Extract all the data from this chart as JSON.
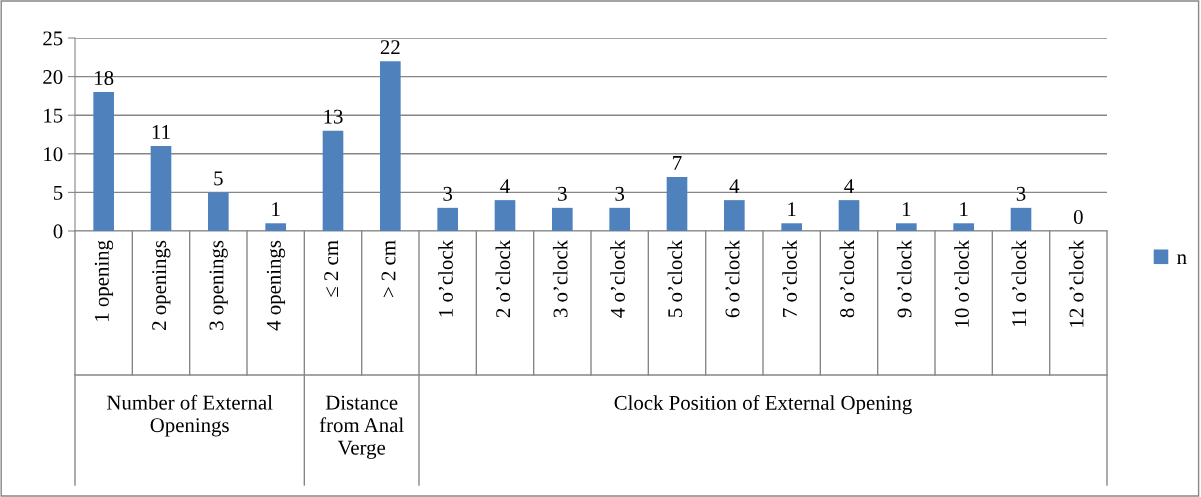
{
  "chart_data": {
    "type": "bar",
    "categories": [
      "1 opening",
      "2 openings",
      "3 openings",
      "4 openings",
      "≤ 2 cm",
      "> 2 cm",
      "1 o’clock",
      "2 o’clock",
      "3 o’clock",
      "4 o’clock",
      "5 o’clock",
      "6 o’clock",
      "7 o’clock",
      "8 o’clock",
      "9 o’clock",
      "10 o’clock",
      "11 o’clock",
      "12 o’clock"
    ],
    "series": [
      {
        "name": "n",
        "color": "#4f81bd",
        "values": [
          18,
          11,
          5,
          1,
          13,
          22,
          3,
          4,
          3,
          3,
          7,
          4,
          1,
          4,
          1,
          1,
          3,
          0
        ]
      }
    ],
    "ylim": [
      0,
      25
    ],
    "yticks": [
      0,
      5,
      10,
      15,
      20,
      25
    ],
    "grid": "y",
    "legend": "right",
    "data_labels": true,
    "annotations": [
      "Number of External\nOpenings",
      "Distance\nfrom Anal\nVerge",
      "Clock Position of External Opening"
    ]
  }
}
